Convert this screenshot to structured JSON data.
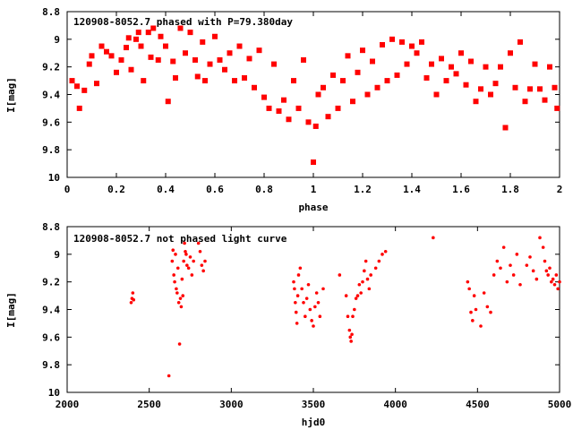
{
  "chart_data": [
    {
      "type": "scatter",
      "title": "120908-8052.7 phased with P=79.380day",
      "xlabel": "phase",
      "ylabel": "I[mag]",
      "xlim": [
        0,
        2
      ],
      "ylim": [
        10,
        8.8
      ],
      "x_ticks": [
        "0",
        "0.2",
        "0.4",
        "0.6",
        "0.8",
        "1",
        "1.2",
        "1.4",
        "1.6",
        "1.8",
        "2"
      ],
      "y_ticks": [
        "8.8",
        "9",
        "9.2",
        "9.4",
        "9.6",
        "9.8",
        "10"
      ],
      "marker_color": "#ff0000",
      "series": [
        {
          "points": [
            [
              0.02,
              9.3
            ],
            [
              0.04,
              9.34
            ],
            [
              0.05,
              9.5
            ],
            [
              0.07,
              9.37
            ],
            [
              0.09,
              9.18
            ],
            [
              0.1,
              9.12
            ],
            [
              0.12,
              9.32
            ],
            [
              0.14,
              9.05
            ],
            [
              0.16,
              9.09
            ],
            [
              0.18,
              9.12
            ],
            [
              0.2,
              9.24
            ],
            [
              0.22,
              9.15
            ],
            [
              0.24,
              9.06
            ],
            [
              0.25,
              8.99
            ],
            [
              0.26,
              9.22
            ],
            [
              0.28,
              9.0
            ],
            [
              0.29,
              8.95
            ],
            [
              0.3,
              9.05
            ],
            [
              0.31,
              9.3
            ],
            [
              0.33,
              8.95
            ],
            [
              0.34,
              9.13
            ],
            [
              0.35,
              8.92
            ],
            [
              0.37,
              9.15
            ],
            [
              0.38,
              8.98
            ],
            [
              0.4,
              9.05
            ],
            [
              0.41,
              9.45
            ],
            [
              0.43,
              9.16
            ],
            [
              0.44,
              9.28
            ],
            [
              0.46,
              8.92
            ],
            [
              0.48,
              9.1
            ],
            [
              0.5,
              8.95
            ],
            [
              0.52,
              9.15
            ],
            [
              0.53,
              9.27
            ],
            [
              0.55,
              9.02
            ],
            [
              0.56,
              9.3
            ],
            [
              0.58,
              9.18
            ],
            [
              0.6,
              8.98
            ],
            [
              0.62,
              9.15
            ],
            [
              0.64,
              9.22
            ],
            [
              0.66,
              9.1
            ],
            [
              0.68,
              9.3
            ],
            [
              0.7,
              9.05
            ],
            [
              0.72,
              9.28
            ],
            [
              0.74,
              9.14
            ],
            [
              0.76,
              9.35
            ],
            [
              0.78,
              9.08
            ],
            [
              0.8,
              9.42
            ],
            [
              0.82,
              9.5
            ],
            [
              0.84,
              9.18
            ],
            [
              0.86,
              9.52
            ],
            [
              0.88,
              9.44
            ],
            [
              0.9,
              9.58
            ],
            [
              0.92,
              9.3
            ],
            [
              0.94,
              9.5
            ],
            [
              0.96,
              9.15
            ],
            [
              0.98,
              9.6
            ],
            [
              1.0,
              9.89
            ],
            [
              1.01,
              9.63
            ],
            [
              1.02,
              9.4
            ],
            [
              1.04,
              9.35
            ],
            [
              1.06,
              9.56
            ],
            [
              1.08,
              9.26
            ],
            [
              1.1,
              9.5
            ],
            [
              1.12,
              9.3
            ],
            [
              1.14,
              9.12
            ],
            [
              1.16,
              9.45
            ],
            [
              1.18,
              9.24
            ],
            [
              1.2,
              9.08
            ],
            [
              1.22,
              9.4
            ],
            [
              1.24,
              9.16
            ],
            [
              1.26,
              9.35
            ],
            [
              1.28,
              9.04
            ],
            [
              1.3,
              9.3
            ],
            [
              1.32,
              9.0
            ],
            [
              1.34,
              9.26
            ],
            [
              1.36,
              9.02
            ],
            [
              1.38,
              9.18
            ],
            [
              1.4,
              9.05
            ],
            [
              1.42,
              9.1
            ],
            [
              1.44,
              9.02
            ],
            [
              1.46,
              9.28
            ],
            [
              1.48,
              9.18
            ],
            [
              1.5,
              9.4
            ],
            [
              1.52,
              9.14
            ],
            [
              1.54,
              9.3
            ],
            [
              1.56,
              9.2
            ],
            [
              1.58,
              9.25
            ],
            [
              1.6,
              9.1
            ],
            [
              1.62,
              9.33
            ],
            [
              1.64,
              9.16
            ],
            [
              1.66,
              9.45
            ],
            [
              1.68,
              9.36
            ],
            [
              1.7,
              9.2
            ],
            [
              1.72,
              9.4
            ],
            [
              1.74,
              9.32
            ],
            [
              1.76,
              9.2
            ],
            [
              1.78,
              9.64
            ],
            [
              1.8,
              9.1
            ],
            [
              1.82,
              9.35
            ],
            [
              1.84,
              9.02
            ],
            [
              1.86,
              9.45
            ],
            [
              1.88,
              9.36
            ],
            [
              1.9,
              9.18
            ],
            [
              1.92,
              9.36
            ],
            [
              1.94,
              9.44
            ],
            [
              1.96,
              9.2
            ],
            [
              1.98,
              9.35
            ],
            [
              1.99,
              9.5
            ]
          ]
        }
      ]
    },
    {
      "type": "scatter",
      "title": "120908-8052.7 not phased light curve",
      "xlabel": "hjd0",
      "ylabel": "I[mag]",
      "xlim": [
        2000,
        5000
      ],
      "ylim": [
        10,
        8.8
      ],
      "x_ticks": [
        "2000",
        "2500",
        "3000",
        "3500",
        "4000",
        "4500",
        "5000"
      ],
      "y_ticks": [
        "8.8",
        "9",
        "9.2",
        "9.4",
        "9.6",
        "9.8",
        "10"
      ],
      "marker_color": "#ff0000",
      "series": [
        {
          "points": [
            [
              2390,
              9.35
            ],
            [
              2395,
              9.32
            ],
            [
              2400,
              9.28
            ],
            [
              2405,
              9.33
            ],
            [
              2620,
              9.88
            ],
            [
              2640,
              9.05
            ],
            [
              2645,
              8.97
            ],
            [
              2650,
              9.15
            ],
            [
              2655,
              9.2
            ],
            [
              2660,
              9.0
            ],
            [
              2665,
              9.25
            ],
            [
              2670,
              9.28
            ],
            [
              2675,
              9.1
            ],
            [
              2680,
              9.35
            ],
            [
              2685,
              9.65
            ],
            [
              2690,
              9.32
            ],
            [
              2695,
              9.38
            ],
            [
              2700,
              9.18
            ],
            [
              2705,
              9.3
            ],
            [
              2710,
              9.05
            ],
            [
              2715,
              8.92
            ],
            [
              2720,
              8.98
            ],
            [
              2725,
              9.0
            ],
            [
              2730,
              9.08
            ],
            [
              2740,
              9.1
            ],
            [
              2750,
              9.02
            ],
            [
              2760,
              9.15
            ],
            [
              2770,
              9.05
            ],
            [
              2800,
              8.92
            ],
            [
              2810,
              8.98
            ],
            [
              2820,
              9.08
            ],
            [
              2830,
              9.12
            ],
            [
              2840,
              9.05
            ],
            [
              3380,
              9.2
            ],
            [
              3385,
              9.25
            ],
            [
              3390,
              9.35
            ],
            [
              3395,
              9.42
            ],
            [
              3400,
              9.5
            ],
            [
              3405,
              9.3
            ],
            [
              3410,
              9.15
            ],
            [
              3420,
              9.1
            ],
            [
              3430,
              9.25
            ],
            [
              3440,
              9.35
            ],
            [
              3450,
              9.45
            ],
            [
              3460,
              9.32
            ],
            [
              3470,
              9.22
            ],
            [
              3480,
              9.4
            ],
            [
              3490,
              9.48
            ],
            [
              3500,
              9.52
            ],
            [
              3510,
              9.38
            ],
            [
              3520,
              9.28
            ],
            [
              3530,
              9.35
            ],
            [
              3540,
              9.45
            ],
            [
              3560,
              9.25
            ],
            [
              3660,
              9.15
            ],
            [
              3700,
              9.3
            ],
            [
              3710,
              9.45
            ],
            [
              3720,
              9.55
            ],
            [
              3725,
              9.6
            ],
            [
              3730,
              9.63
            ],
            [
              3735,
              9.58
            ],
            [
              3740,
              9.45
            ],
            [
              3750,
              9.4
            ],
            [
              3760,
              9.32
            ],
            [
              3770,
              9.3
            ],
            [
              3780,
              9.22
            ],
            [
              3790,
              9.28
            ],
            [
              3800,
              9.2
            ],
            [
              3810,
              9.12
            ],
            [
              3820,
              9.05
            ],
            [
              3830,
              9.18
            ],
            [
              3840,
              9.25
            ],
            [
              3850,
              9.15
            ],
            [
              3880,
              9.1
            ],
            [
              3900,
              9.05
            ],
            [
              3920,
              9.0
            ],
            [
              3940,
              8.98
            ],
            [
              4230,
              8.88
            ],
            [
              4440,
              9.2
            ],
            [
              4450,
              9.25
            ],
            [
              4460,
              9.42
            ],
            [
              4470,
              9.48
            ],
            [
              4480,
              9.3
            ],
            [
              4490,
              9.4
            ],
            [
              4520,
              9.52
            ],
            [
              4540,
              9.28
            ],
            [
              4560,
              9.38
            ],
            [
              4580,
              9.42
            ],
            [
              4600,
              9.15
            ],
            [
              4620,
              9.05
            ],
            [
              4640,
              9.1
            ],
            [
              4660,
              8.95
            ],
            [
              4680,
              9.2
            ],
            [
              4700,
              9.08
            ],
            [
              4720,
              9.15
            ],
            [
              4740,
              9.0
            ],
            [
              4760,
              9.22
            ],
            [
              4800,
              9.08
            ],
            [
              4820,
              9.02
            ],
            [
              4840,
              9.12
            ],
            [
              4860,
              9.18
            ],
            [
              4880,
              8.88
            ],
            [
              4900,
              8.95
            ],
            [
              4910,
              9.05
            ],
            [
              4920,
              9.12
            ],
            [
              4930,
              9.15
            ],
            [
              4940,
              9.1
            ],
            [
              4950,
              9.2
            ],
            [
              4960,
              9.18
            ],
            [
              4970,
              9.22
            ],
            [
              4980,
              9.15
            ],
            [
              4990,
              9.25
            ],
            [
              5000,
              9.2
            ]
          ]
        }
      ]
    }
  ]
}
